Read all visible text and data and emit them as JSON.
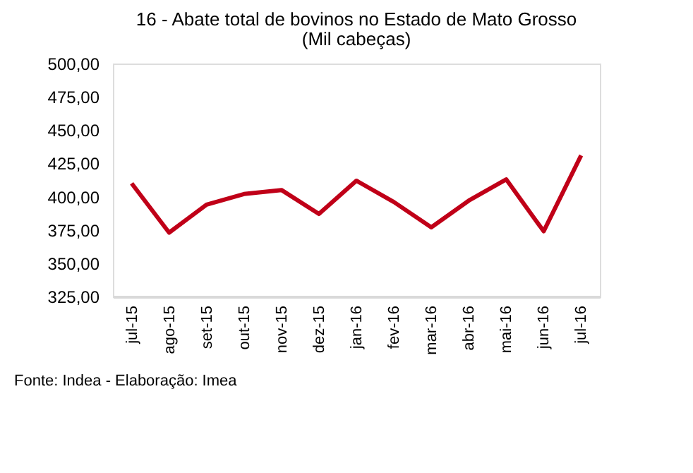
{
  "chart_data": {
    "type": "line",
    "title": "16 - Abate total de bovinos no Estado de Mato Grosso",
    "subtitle": "(Mil cabeças)",
    "categories": [
      "jul-15",
      "ago-15",
      "set-15",
      "out-15",
      "nov-15",
      "dez-15",
      "jan-16",
      "fev-16",
      "mar-16",
      "abr-16",
      "mai-16",
      "jun-16",
      "jul-16"
    ],
    "series": [
      {
        "color": "#c00018",
        "values": [
          410,
          373,
          394,
          402,
          405,
          387,
          412,
          396,
          377,
          397,
          413,
          374,
          431
        ]
      }
    ],
    "ylim": [
      325,
      500
    ],
    "yticks": [
      {
        "value": 325,
        "label": "325,00"
      },
      {
        "value": 350,
        "label": "350,00"
      },
      {
        "value": 375,
        "label": "375,00"
      },
      {
        "value": 400,
        "label": "400,00"
      },
      {
        "value": 425,
        "label": "425,00"
      },
      {
        "value": 450,
        "label": "450,00"
      },
      {
        "value": 475,
        "label": "475,00"
      },
      {
        "value": 500,
        "label": "500,00"
      }
    ],
    "grid": false,
    "legend": false,
    "marker": "none",
    "line_style": "solid",
    "annotations": [
      "Fonte: Indea - Elaboração: Imea"
    ]
  }
}
